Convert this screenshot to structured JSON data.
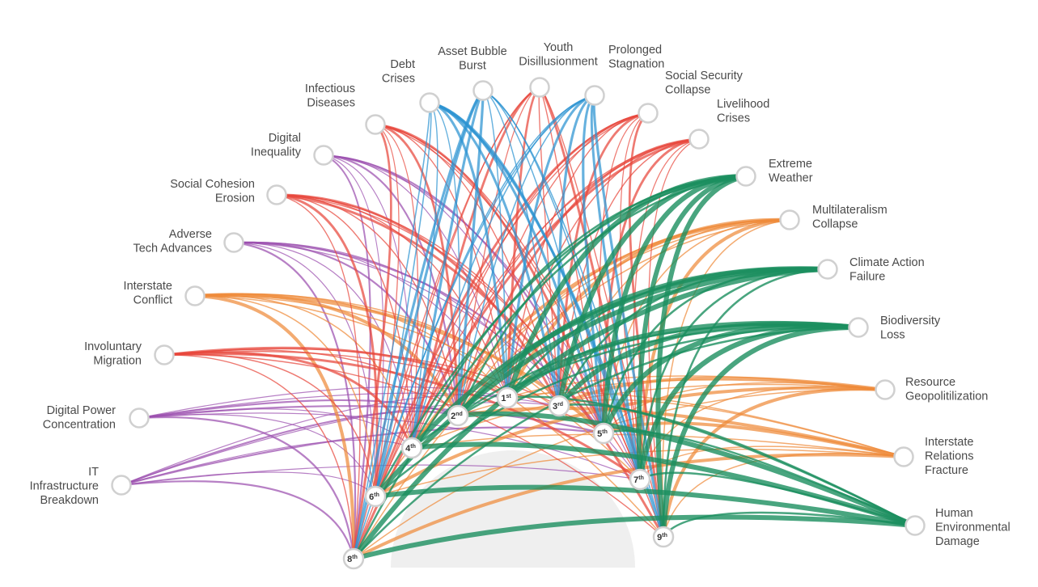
{
  "colors": {
    "technological": "#9b4fae",
    "societal": "#e8473b",
    "economic": "#2b93d1",
    "geopolitical": "#ee8a3a",
    "environmental": "#1b8f5f",
    "center": "#efefef"
  },
  "risks": [
    {
      "label": [
        "IT",
        "Infrastructure",
        "Breakdown"
      ],
      "category": "technological"
    },
    {
      "label": [
        "Digital Power",
        "Concentration"
      ],
      "category": "technological"
    },
    {
      "label": [
        "Involuntary",
        "Migration"
      ],
      "category": "societal"
    },
    {
      "label": [
        "Interstate",
        "Conflict"
      ],
      "category": "geopolitical"
    },
    {
      "label": [
        "Adverse",
        "Tech Advances"
      ],
      "category": "technological"
    },
    {
      "label": [
        "Social Cohesion",
        "Erosion"
      ],
      "category": "societal"
    },
    {
      "label": [
        "Digital",
        "Inequality"
      ],
      "category": "technological"
    },
    {
      "label": [
        "Infectious",
        "Diseases"
      ],
      "category": "societal"
    },
    {
      "label": [
        "Debt",
        "Crises"
      ],
      "category": "economic"
    },
    {
      "label": [
        "Asset Bubble",
        "Burst"
      ],
      "category": "economic"
    },
    {
      "label": [
        "Youth",
        "Disillusionment"
      ],
      "category": "societal"
    },
    {
      "label": [
        "Prolonged",
        "Stagnation"
      ],
      "category": "economic"
    },
    {
      "label": [
        "Social Security",
        "Collapse"
      ],
      "category": "societal"
    },
    {
      "label": [
        "Livelihood",
        "Crises"
      ],
      "category": "societal"
    },
    {
      "label": [
        "Extreme",
        "Weather"
      ],
      "category": "environmental"
    },
    {
      "label": [
        "Multilateralism",
        "Collapse"
      ],
      "category": "geopolitical"
    },
    {
      "label": [
        "Climate Action",
        "Failure"
      ],
      "category": "environmental"
    },
    {
      "label": [
        "Biodiversity",
        "Loss"
      ],
      "category": "environmental"
    },
    {
      "label": [
        "Resource",
        "Geopolitilization"
      ],
      "category": "geopolitical"
    },
    {
      "label": [
        "Interstate",
        "Relations",
        "Fracture"
      ],
      "category": "geopolitical"
    },
    {
      "label": [
        "Human",
        "Environmental",
        "Damage"
      ],
      "category": "environmental"
    }
  ],
  "ranks": [
    {
      "num": "1",
      "sup": "st"
    },
    {
      "num": "2",
      "sup": "nd"
    },
    {
      "num": "3",
      "sup": "rd"
    },
    {
      "num": "4",
      "sup": "th"
    },
    {
      "num": "5",
      "sup": "th"
    },
    {
      "num": "6",
      "sup": "th"
    },
    {
      "num": "7",
      "sup": "th"
    },
    {
      "num": "8",
      "sup": "th"
    },
    {
      "num": "9",
      "sup": "th"
    }
  ]
}
